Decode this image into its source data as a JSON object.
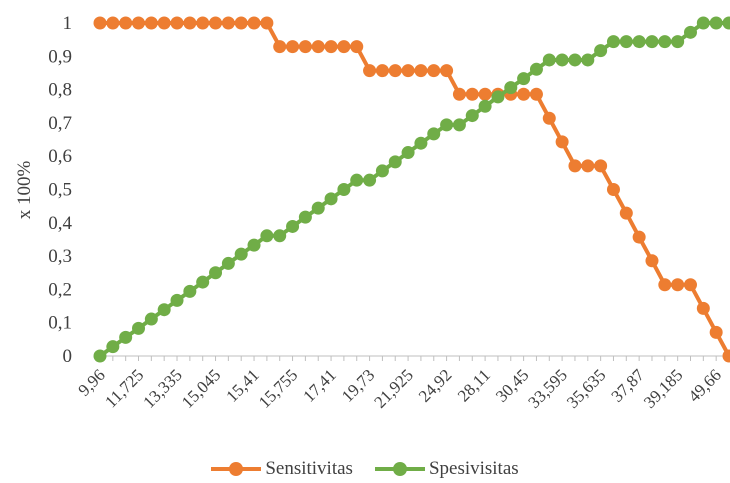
{
  "chart_data": {
    "type": "line",
    "title": "",
    "xlabel": "",
    "ylabel": "x 100%",
    "ylim": [
      0,
      1
    ],
    "yticks": [
      "0",
      "0,1",
      "0,2",
      "0,3",
      "0,4",
      "0,5",
      "0,6",
      "0,7",
      "0,8",
      "0,9",
      "1"
    ],
    "x_tick_labels": [
      "9,96",
      "11,725",
      "13,335",
      "15,045",
      "15,41",
      "15,755",
      "17,41",
      "19,73",
      "21,925",
      "24,92",
      "28,11",
      "30,45",
      "33,595",
      "35,635",
      "37,87",
      "39,185",
      "49,66"
    ],
    "grid": false,
    "legend_position": "bottom",
    "series": [
      {
        "name": "Sensitivitas",
        "color": "#ED7D31",
        "values": [
          1,
          1,
          1,
          1,
          1,
          1,
          1,
          1,
          1,
          1,
          1,
          1,
          1,
          1,
          0.929,
          0.929,
          0.929,
          0.929,
          0.929,
          0.929,
          0.929,
          0.857,
          0.857,
          0.857,
          0.857,
          0.857,
          0.857,
          0.857,
          0.786,
          0.786,
          0.786,
          0.786,
          0.786,
          0.786,
          0.786,
          0.714,
          0.643,
          0.571,
          0.571,
          0.571,
          0.5,
          0.429,
          0.357,
          0.286,
          0.214,
          0.214,
          0.214,
          0.143,
          0.071,
          0
        ]
      },
      {
        "name": "Spesivisitas",
        "color": "#70AD47",
        "values": [
          0,
          0.028,
          0.056,
          0.083,
          0.111,
          0.139,
          0.167,
          0.194,
          0.222,
          0.25,
          0.278,
          0.306,
          0.333,
          0.361,
          0.361,
          0.389,
          0.417,
          0.444,
          0.472,
          0.5,
          0.528,
          0.528,
          0.556,
          0.583,
          0.611,
          0.639,
          0.667,
          0.694,
          0.694,
          0.722,
          0.75,
          0.778,
          0.806,
          0.833,
          0.861,
          0.889,
          0.889,
          0.889,
          0.889,
          0.917,
          0.944,
          0.944,
          0.944,
          0.944,
          0.944,
          0.944,
          0.972,
          1,
          1,
          1
        ]
      }
    ]
  }
}
